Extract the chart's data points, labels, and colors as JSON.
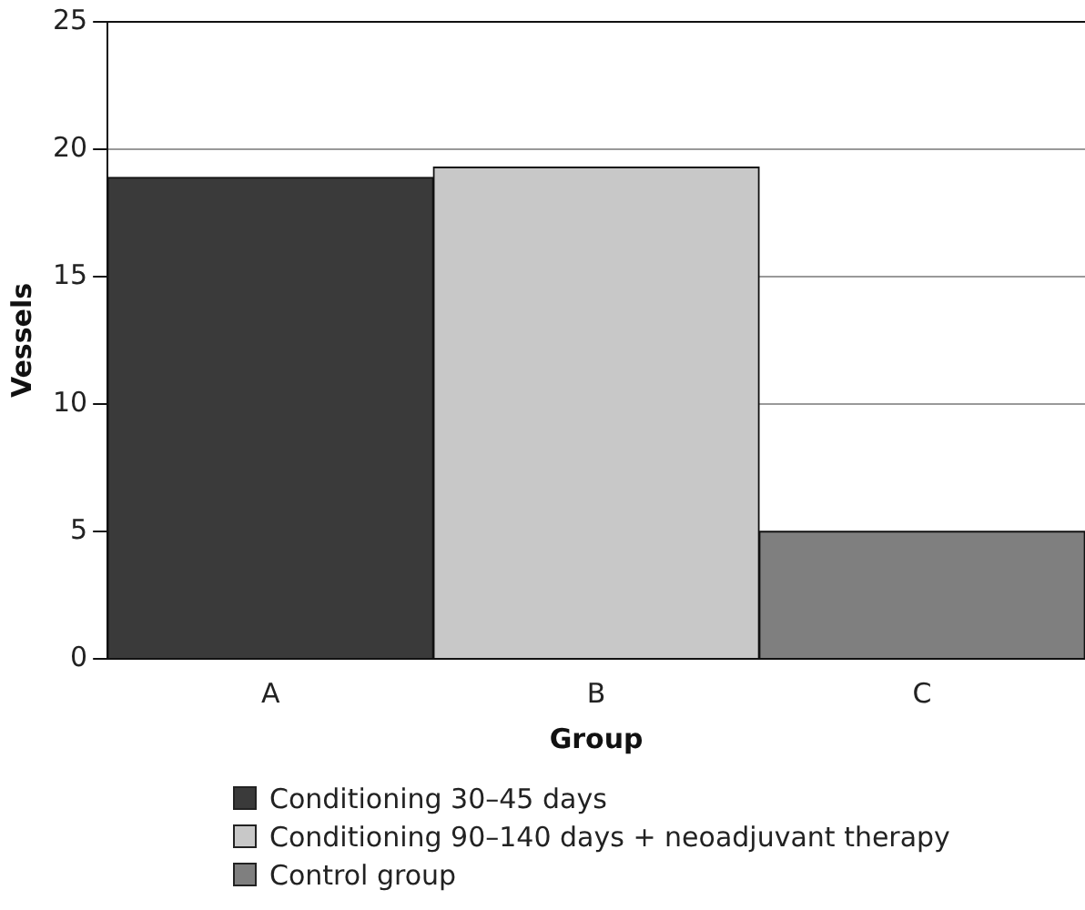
{
  "chart_data": {
    "type": "bar",
    "xlabel": "Group",
    "ylabel": "Vessels",
    "categories": [
      "A",
      "B",
      "C"
    ],
    "series": [
      {
        "name": "Conditioning 30–45 days",
        "color": "#3a3a3a",
        "values": [
          18.9,
          null,
          null
        ]
      },
      {
        "name": "Conditioning 90–140 days + neoadjuvant therapy",
        "color": "#c8c8c8",
        "values": [
          null,
          19.3,
          null
        ]
      },
      {
        "name": "Control group",
        "color": "#7f7f7f",
        "values": [
          null,
          null,
          5.0
        ]
      }
    ],
    "ylim": [
      0,
      25
    ],
    "yticks": [
      0,
      5,
      10,
      15,
      20,
      25
    ],
    "grid": "y",
    "legend": "bottom"
  }
}
